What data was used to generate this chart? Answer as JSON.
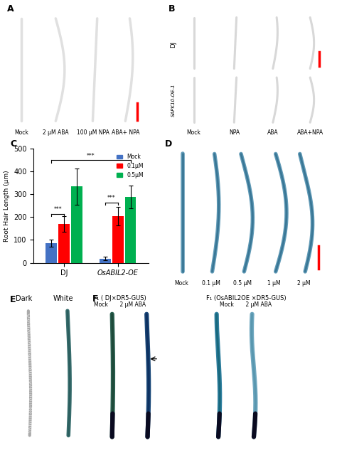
{
  "panel_labels": [
    "A",
    "B",
    "C",
    "D",
    "E",
    "F"
  ],
  "bar_chart": {
    "groups": [
      "DJ",
      "OsABIL2-OE"
    ],
    "categories": [
      "Mock",
      "0.1μM",
      "0.5μM"
    ],
    "colors": [
      "#4472C4",
      "#FF0000",
      "#00B050"
    ],
    "values": {
      "DJ": [
        85,
        170,
        335
      ],
      "OsABIL2-OE": [
        18,
        205,
        288
      ]
    },
    "errors": {
      "DJ": [
        15,
        35,
        80
      ],
      "OsABIL2-OE": [
        8,
        40,
        50
      ]
    },
    "ylabel": "Root Hair Length (μm)",
    "ylim": [
      0,
      500
    ],
    "yticks": [
      0,
      100,
      200,
      300,
      400,
      500
    ]
  },
  "panel_A": {
    "label": "A",
    "xlabels": [
      "Mock",
      "2 μM ABA",
      "100 μM NPA",
      "ABA+ NPA"
    ],
    "bg_color": "#000000"
  },
  "panel_B": {
    "label": "B",
    "xlabels": [
      "Mock",
      "NPA",
      "ABA",
      "ABA+NPA"
    ],
    "row_labels": [
      "DJ",
      "SAPK10-OE-1"
    ],
    "bg_color": "#000000"
  },
  "panel_D": {
    "label": "D",
    "xlabels": [
      "Mock",
      "0.1 μM",
      "0.5 μM",
      "1 μM",
      "2 μM"
    ],
    "bg_color": "#f0f0f0"
  },
  "panel_E": {
    "label": "E",
    "xlabels": [
      "Dark",
      "White"
    ],
    "bg_color": "#000000"
  },
  "panel_F": {
    "label": "F",
    "group1_title": "F₁ ( DJ×DR5-GUS)",
    "group2_title": "F₁ (OsABIL2OE ×DR5-GUS)",
    "xlabels": [
      "Mock",
      "2 μM ABA",
      "Mock",
      "2 μM ABA"
    ],
    "bg_color": "#d0e8f0"
  },
  "figure_bg": "#ffffff",
  "scalebar_color": "#FF0000",
  "significance_color": "#000000",
  "font_size": 7,
  "label_font_size": 9
}
